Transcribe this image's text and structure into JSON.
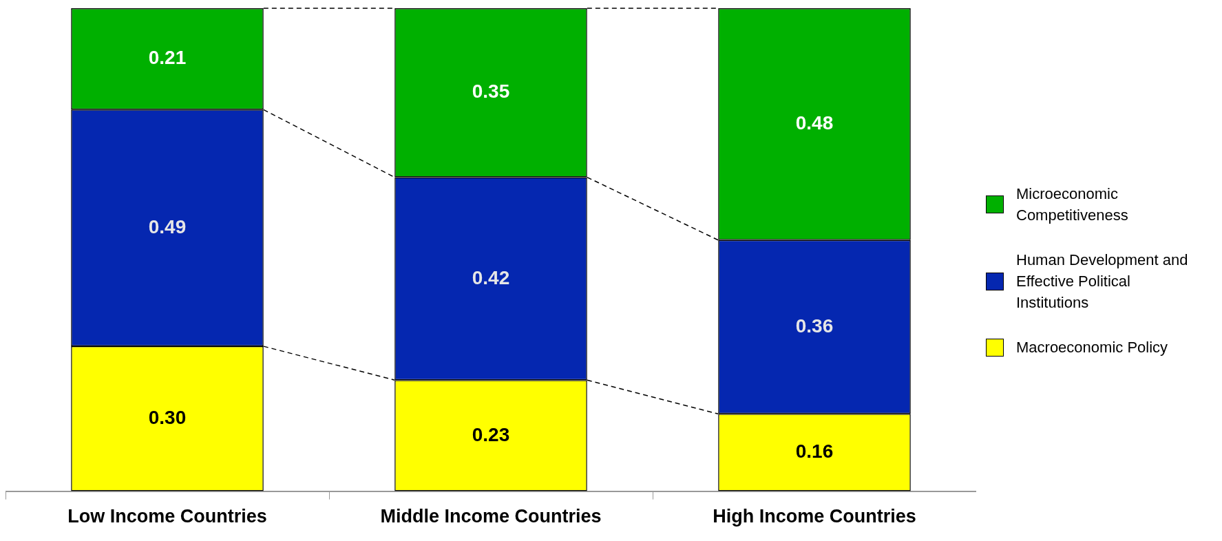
{
  "chart_data": {
    "type": "bar",
    "stacked": true,
    "categories": [
      "Low Income Countries",
      "Middle Income Countries",
      "High Income Countries"
    ],
    "series": [
      {
        "name": "Macroeconomic Policy",
        "color": "#ffff00",
        "values": [
          0.3,
          0.23,
          0.16
        ],
        "value_labels": [
          "0.30",
          "0.23",
          "0.16"
        ]
      },
      {
        "name": "Human Development and Effective Political Institutions",
        "color": "#0527b0",
        "values": [
          0.49,
          0.42,
          0.36
        ],
        "value_labels": [
          "0.49",
          "0.42",
          "0.36"
        ]
      },
      {
        "name": "Microeconomic Competitiveness",
        "color": "#00b000",
        "values": [
          0.21,
          0.35,
          0.48
        ],
        "value_labels": [
          "0.21",
          "0.35",
          "0.48"
        ]
      }
    ],
    "legend": "right"
  }
}
